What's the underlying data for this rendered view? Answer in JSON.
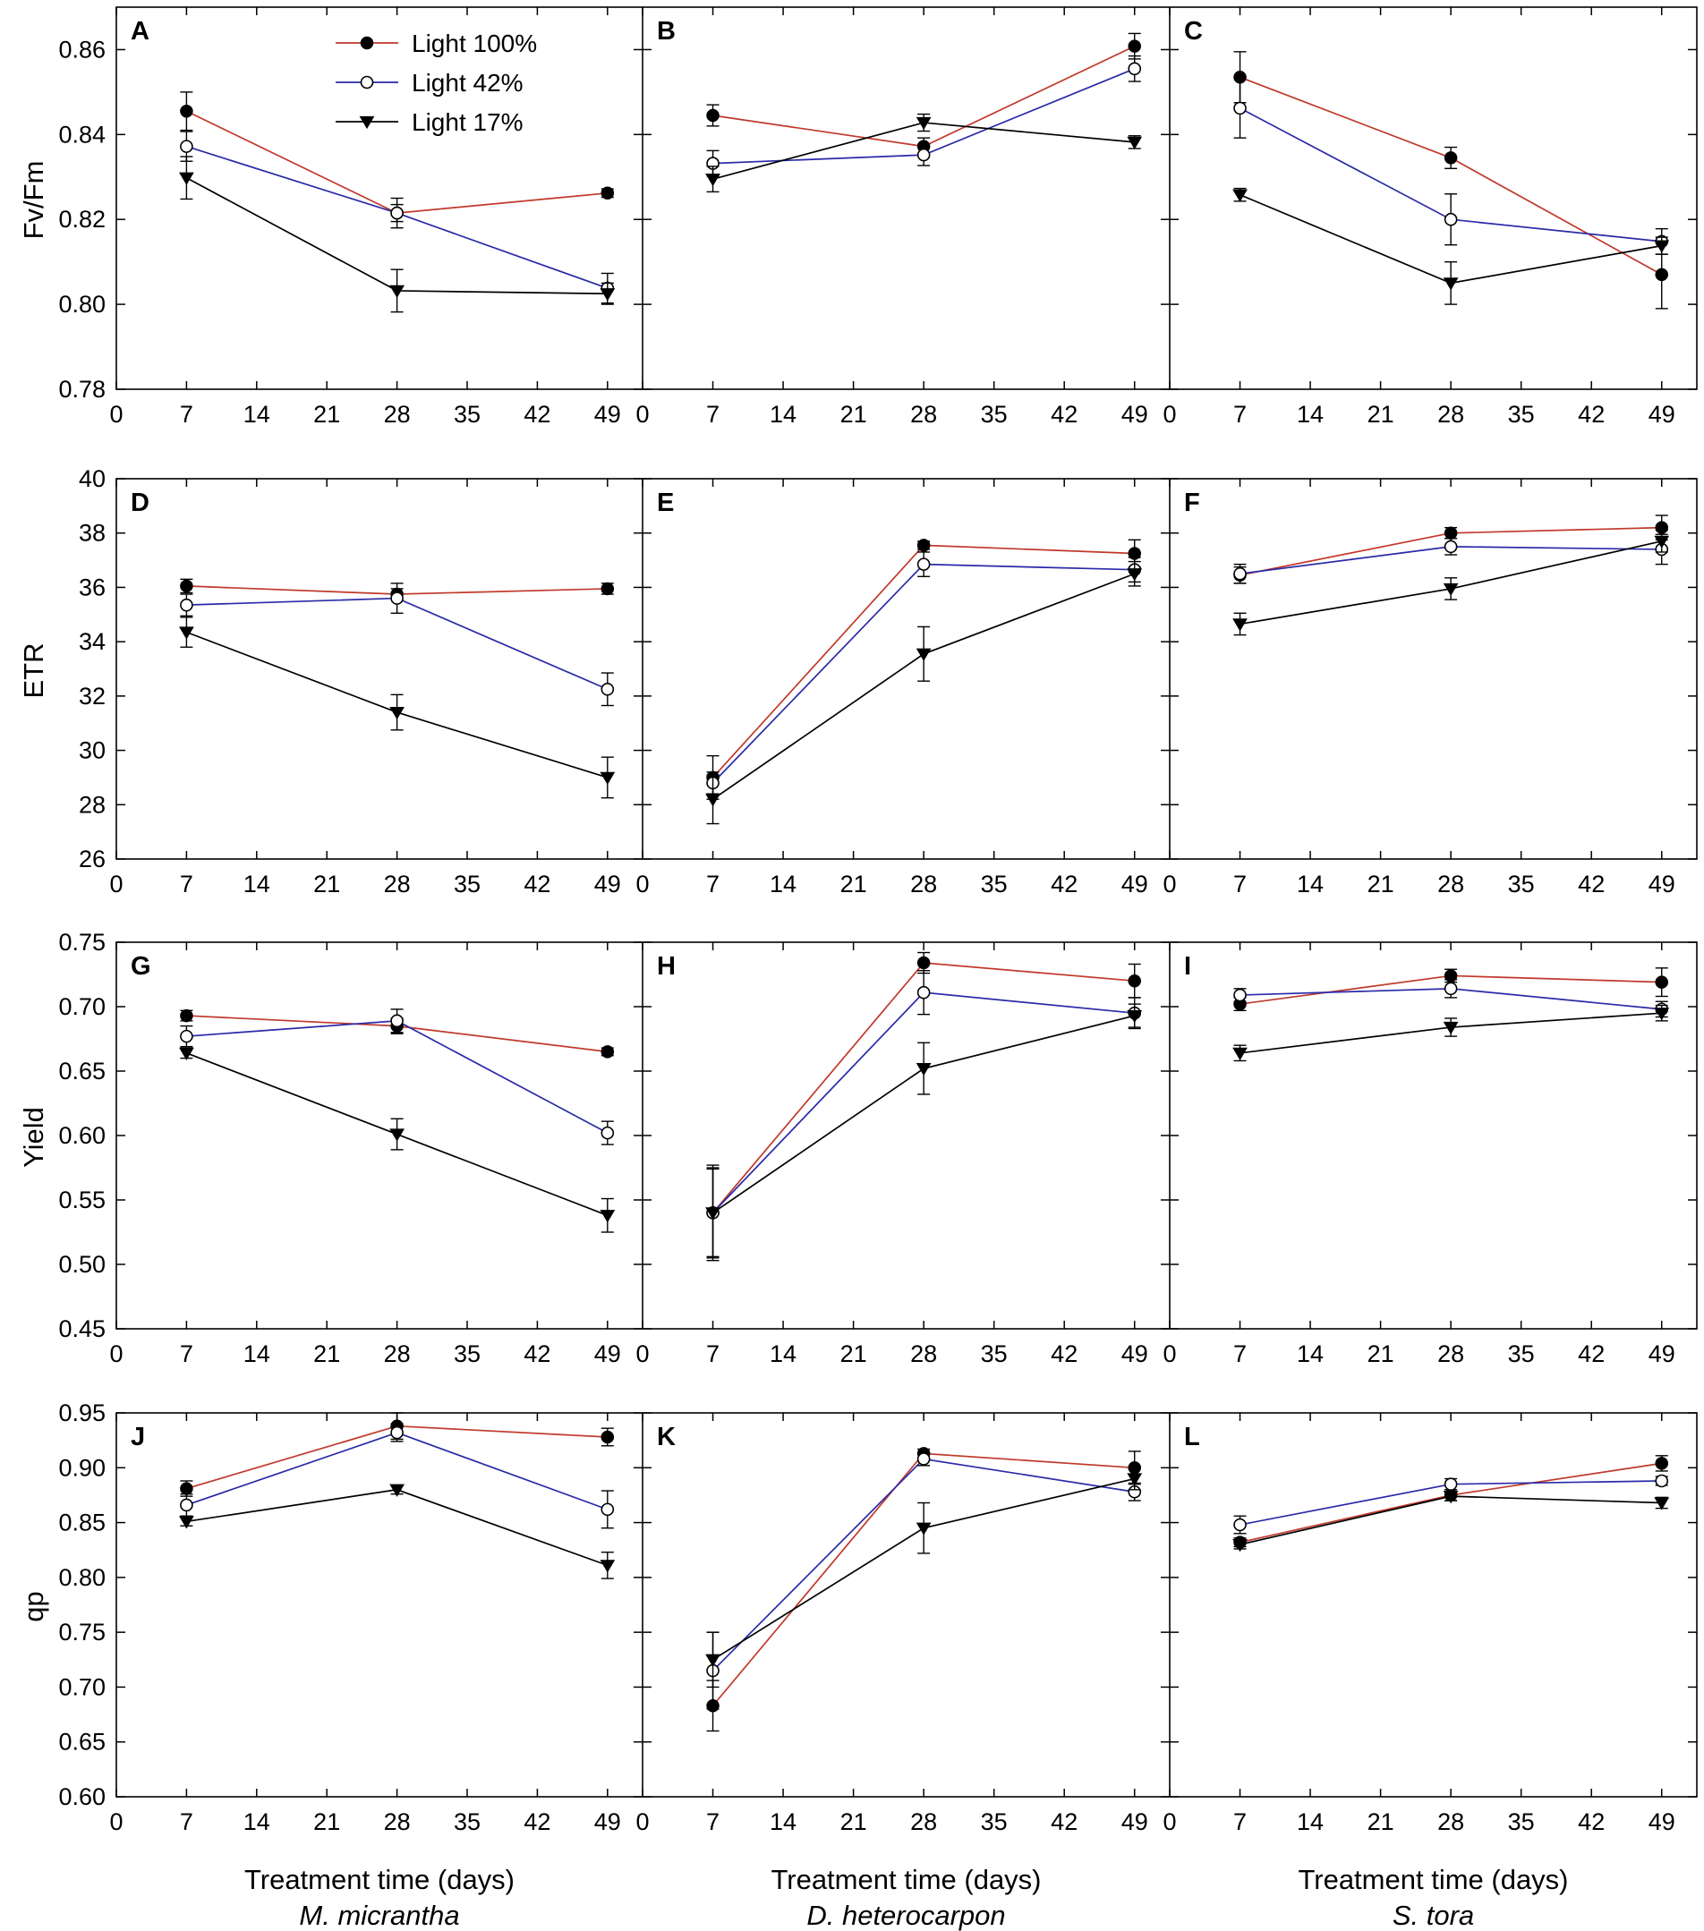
{
  "chart_data": {
    "type": "line",
    "x_ticks": [
      0,
      7,
      14,
      21,
      28,
      35,
      42,
      49
    ],
    "x_label": "Treatment time (days)",
    "species": [
      "M. micrantha",
      "D. heterocarpon",
      "S. tora"
    ],
    "legend": [
      {
        "name": "Light 100%",
        "color": "#c0392b",
        "marker": "filled-circle"
      },
      {
        "name": "Light 42%",
        "color": "#2a2aa8",
        "marker": "open-circle"
      },
      {
        "name": "Light 17%",
        "color": "#000000",
        "marker": "filled-triangle-down"
      }
    ],
    "rows": [
      {
        "ylabel": "Fv/Fm",
        "ylim": [
          0.78,
          0.87
        ],
        "y_ticks": [
          "0.78",
          "0.80",
          "0.82",
          "0.84",
          "0.86"
        ]
      },
      {
        "ylabel": "ETR",
        "ylim": [
          26,
          40
        ],
        "y_ticks": [
          "26",
          "28",
          "30",
          "32",
          "34",
          "36",
          "38",
          "40"
        ]
      },
      {
        "ylabel": "Yield",
        "ylim": [
          0.45,
          0.75
        ],
        "y_ticks": [
          "0.45",
          "0.50",
          "0.55",
          "0.60",
          "0.65",
          "0.70",
          "0.75"
        ]
      },
      {
        "ylabel": "qp",
        "ylim": [
          0.6,
          0.95
        ],
        "y_ticks": [
          "0.60",
          "0.65",
          "0.70",
          "0.75",
          "0.80",
          "0.85",
          "0.90",
          "0.95"
        ]
      }
    ],
    "panels": [
      {
        "letter": "A",
        "row": 0,
        "col": 0,
        "x": [
          7,
          28,
          49
        ],
        "series": [
          {
            "name": "Light 100%",
            "values": [
              0.8455,
              0.8215,
              0.8262
            ],
            "errors": [
              0.0045,
              0.002,
              0.001
            ]
          },
          {
            "name": "Light 42%",
            "values": [
              0.8372,
              0.8215,
              0.8038
            ],
            "errors": [
              0.0035,
              0.0035,
              0.0035
            ]
          },
          {
            "name": "Light 17%",
            "values": [
              0.8298,
              0.8032,
              0.8025
            ],
            "errors": [
              0.005,
              0.005,
              0.0025
            ]
          }
        ]
      },
      {
        "letter": "B",
        "row": 0,
        "col": 1,
        "x": [
          7,
          28,
          49
        ],
        "series": [
          {
            "name": "Light 100%",
            "values": [
              0.8445,
              0.8372,
              0.8608
            ],
            "errors": [
              0.0025,
              0.002,
              0.003
            ]
          },
          {
            "name": "Light 42%",
            "values": [
              0.8332,
              0.8352,
              0.8555
            ],
            "errors": [
              0.003,
              0.0025,
              0.003
            ]
          },
          {
            "name": "Light 17%",
            "values": [
              0.8295,
              0.8428,
              0.8382
            ],
            "errors": [
              0.003,
              0.002,
              0.0015
            ]
          }
        ]
      },
      {
        "letter": "C",
        "row": 0,
        "col": 2,
        "x": [
          7,
          28,
          49
        ],
        "series": [
          {
            "name": "Light 100%",
            "values": [
              0.8535,
              0.8345,
              0.807
            ],
            "errors": [
              0.006,
              0.0025,
              0.008
            ]
          },
          {
            "name": "Light 42%",
            "values": [
              0.8462,
              0.82,
              0.8148
            ],
            "errors": [
              0.007,
              0.006,
              0.003
            ]
          },
          {
            "name": "Light 17%",
            "values": [
              0.8258,
              0.805,
              0.8138
            ],
            "errors": [
              0.0015,
              0.005,
              0.002
            ]
          }
        ]
      },
      {
        "letter": "D",
        "row": 1,
        "col": 0,
        "x": [
          7,
          28,
          49
        ],
        "series": [
          {
            "name": "Light 100%",
            "values": [
              36.05,
              35.75,
              35.95
            ],
            "errors": [
              0.25,
              0.2,
              0.2
            ]
          },
          {
            "name": "Light 42%",
            "values": [
              35.35,
              35.6,
              32.25
            ],
            "errors": [
              0.4,
              0.55,
              0.6
            ]
          },
          {
            "name": "Light 17%",
            "values": [
              34.35,
              31.4,
              29.0
            ],
            "errors": [
              0.55,
              0.65,
              0.75
            ]
          }
        ]
      },
      {
        "letter": "E",
        "row": 1,
        "col": 1,
        "x": [
          7,
          28,
          49
        ],
        "series": [
          {
            "name": "Light 100%",
            "values": [
              29.0,
              37.55,
              37.25
            ],
            "errors": [
              0.8,
              0.15,
              0.5
            ]
          },
          {
            "name": "Light 42%",
            "values": [
              28.8,
              36.85,
              36.65
            ],
            "errors": [
              0.4,
              0.45,
              0.45
            ]
          },
          {
            "name": "Light 17%",
            "values": [
              28.2,
              33.55,
              36.5
            ],
            "errors": [
              0.9,
              1.0,
              0.45
            ]
          }
        ]
      },
      {
        "letter": "F",
        "row": 1,
        "col": 2,
        "x": [
          7,
          28,
          49
        ],
        "series": [
          {
            "name": "Light 100%",
            "values": [
              36.45,
              38.0,
              38.2
            ],
            "errors": [
              0.3,
              0.2,
              0.45
            ]
          },
          {
            "name": "Light 42%",
            "values": [
              36.5,
              37.5,
              37.4
            ],
            "errors": [
              0.35,
              0.3,
              0.55
            ]
          },
          {
            "name": "Light 17%",
            "values": [
              34.65,
              35.95,
              37.7
            ],
            "errors": [
              0.4,
              0.4,
              0.4
            ]
          }
        ]
      },
      {
        "letter": "G",
        "row": 2,
        "col": 0,
        "x": [
          7,
          28,
          49
        ],
        "series": [
          {
            "name": "Light 100%",
            "values": [
              0.693,
              0.685,
              0.665
            ],
            "errors": [
              0.004,
              0.006,
              0.003
            ]
          },
          {
            "name": "Light 42%",
            "values": [
              0.677,
              0.689,
              0.602
            ],
            "errors": [
              0.008,
              0.009,
              0.009
            ]
          },
          {
            "name": "Light 17%",
            "values": [
              0.664,
              0.601,
              0.538
            ],
            "errors": [
              0.004,
              0.012,
              0.013
            ]
          }
        ]
      },
      {
        "letter": "H",
        "row": 2,
        "col": 1,
        "x": [
          7,
          28,
          49
        ],
        "series": [
          {
            "name": "Light 100%",
            "values": [
              0.54,
              0.734,
              0.72
            ],
            "errors": [
              0.037,
              0.008,
              0.013
            ]
          },
          {
            "name": "Light 42%",
            "values": [
              0.54,
              0.711,
              0.695
            ],
            "errors": [
              0.035,
              0.017,
              0.012
            ]
          },
          {
            "name": "Light 17%",
            "values": [
              0.54,
              0.652,
              0.693
            ],
            "errors": [
              0.034,
              0.02,
              0.009
            ]
          }
        ]
      },
      {
        "letter": "I",
        "row": 2,
        "col": 2,
        "x": [
          7,
          28,
          49
        ],
        "series": [
          {
            "name": "Light 100%",
            "values": [
              0.702,
              0.724,
              0.719
            ],
            "errors": [
              0.005,
              0.005,
              0.011
            ]
          },
          {
            "name": "Light 42%",
            "values": [
              0.709,
              0.714,
              0.698
            ],
            "errors": [
              0.005,
              0.007,
              0.006
            ]
          },
          {
            "name": "Light 17%",
            "values": [
              0.664,
              0.684,
              0.695
            ],
            "errors": [
              0.006,
              0.007,
              0.006
            ]
          }
        ]
      },
      {
        "letter": "J",
        "row": 3,
        "col": 0,
        "x": [
          7,
          28,
          49
        ],
        "series": [
          {
            "name": "Light 100%",
            "values": [
              0.881,
              0.938,
              0.928
            ],
            "errors": [
              0.007,
              0.012,
              0.008
            ]
          },
          {
            "name": "Light 42%",
            "values": [
              0.866,
              0.932,
              0.862
            ],
            "errors": [
              0.01,
              0.008,
              0.017
            ]
          },
          {
            "name": "Light 17%",
            "values": [
              0.851,
              0.88,
              0.811
            ],
            "errors": [
              0.004,
              0.004,
              0.012
            ]
          }
        ]
      },
      {
        "letter": "K",
        "row": 3,
        "col": 1,
        "x": [
          7,
          28,
          49
        ],
        "series": [
          {
            "name": "Light 100%",
            "values": [
              0.683,
              0.913,
              0.9
            ],
            "errors": [
              0.023,
              0.004,
              0.015
            ]
          },
          {
            "name": "Light 42%",
            "values": [
              0.715,
              0.908,
              0.878
            ],
            "errors": [
              0.035,
              0.006,
              0.008
            ]
          },
          {
            "name": "Light 17%",
            "values": [
              0.725,
              0.845,
              0.89
            ],
            "errors": [
              0.025,
              0.023,
              0.01
            ]
          }
        ]
      },
      {
        "letter": "L",
        "row": 3,
        "col": 2,
        "x": [
          7,
          28,
          49
        ],
        "series": [
          {
            "name": "Light 100%",
            "values": [
              0.832,
              0.875,
              0.904
            ],
            "errors": [
              0.004,
              0.005,
              0.007
            ]
          },
          {
            "name": "Light 42%",
            "values": [
              0.848,
              0.885,
              0.888
            ],
            "errors": [
              0.008,
              0.005,
              0.004
            ]
          },
          {
            "name": "Light 17%",
            "values": [
              0.83,
              0.874,
              0.868
            ],
            "errors": [
              0.004,
              0.004,
              0.005
            ]
          }
        ]
      }
    ]
  }
}
